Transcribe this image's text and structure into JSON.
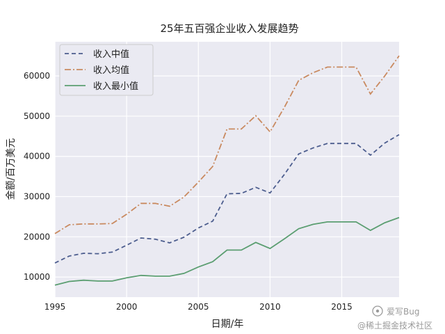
{
  "chart_data": {
    "type": "line",
    "title": "25年五百强企业收入发展趋势",
    "xlabel": "日期/年",
    "ylabel": "金额/百万美元",
    "xlim": [
      1995,
      2019
    ],
    "ylim": [
      5000,
      68500
    ],
    "xticks": [
      1995,
      2000,
      2005,
      2010,
      2015
    ],
    "yticks": [
      10000,
      20000,
      30000,
      40000,
      50000,
      60000
    ],
    "grid": true,
    "legend_position": "top-left",
    "x": [
      1995,
      1996,
      1997,
      1998,
      1999,
      2000,
      2001,
      2002,
      2003,
      2004,
      2005,
      2006,
      2007,
      2008,
      2009,
      2010,
      2011,
      2012,
      2013,
      2014,
      2015,
      2016,
      2017,
      2018,
      2019
    ],
    "series": [
      {
        "name": "收入中值",
        "color": "#4c5d8e",
        "style": "dashed",
        "values": [
          13500,
          15200,
          15900,
          15800,
          16200,
          17900,
          19700,
          19400,
          18500,
          19900,
          22200,
          23900,
          30700,
          30800,
          32300,
          30900,
          35500,
          40600,
          42100,
          43200,
          43200,
          43200,
          40300,
          43300,
          45400
        ]
      },
      {
        "name": "收入均值",
        "color": "#c98a60",
        "style": "dashdot",
        "values": [
          20800,
          23000,
          23200,
          23200,
          23300,
          25600,
          28300,
          28300,
          27600,
          29900,
          33600,
          37500,
          46800,
          46800,
          50100,
          46100,
          52200,
          58900,
          60800,
          62200,
          62200,
          62200,
          55500,
          60000,
          65000
        ]
      },
      {
        "name": "收入最小值",
        "color": "#5b9e71",
        "style": "solid",
        "values": [
          8000,
          8900,
          9200,
          9000,
          9000,
          9800,
          10400,
          10200,
          10200,
          10900,
          12500,
          13800,
          16700,
          16700,
          18600,
          17100,
          19500,
          22000,
          23100,
          23700,
          23700,
          23700,
          21600,
          23500,
          24800
        ]
      }
    ]
  },
  "watermark": {
    "line1": "爱写Bug",
    "line2": "@稀土掘金技术社区"
  }
}
